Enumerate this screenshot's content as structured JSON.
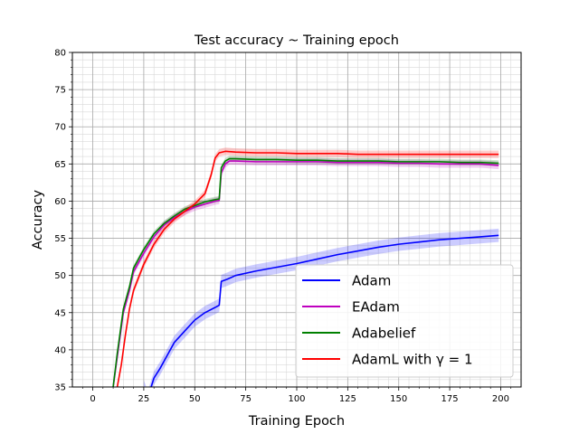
{
  "chart_data": {
    "type": "line",
    "title": "Test accuracy ~ Training epoch",
    "xlabel": "Training Epoch",
    "ylabel": "Accuracy",
    "xlim": [
      -10,
      210
    ],
    "ylim": [
      35,
      80
    ],
    "xticks": [
      0,
      25,
      50,
      75,
      100,
      125,
      150,
      175,
      200
    ],
    "yticks": [
      35,
      40,
      45,
      50,
      55,
      60,
      65,
      70,
      75,
      80
    ],
    "grid": true,
    "minor_grid": true,
    "legend_position": "lower-right",
    "series": [
      {
        "name": "Adam",
        "color": "#0000ff",
        "band": 0.9,
        "points": [
          [
            25,
            35
          ],
          [
            27,
            33.6
          ],
          [
            30,
            36.2
          ],
          [
            33,
            37.5
          ],
          [
            36,
            39
          ],
          [
            40,
            41
          ],
          [
            45,
            42.5
          ],
          [
            50,
            44
          ],
          [
            55,
            45
          ],
          [
            60,
            45.7
          ],
          [
            62,
            46
          ],
          [
            63,
            49.2
          ],
          [
            66,
            49.5
          ],
          [
            70,
            50
          ],
          [
            80,
            50.6
          ],
          [
            90,
            51.1
          ],
          [
            100,
            51.6
          ],
          [
            110,
            52.2
          ],
          [
            120,
            52.8
          ],
          [
            130,
            53.3
          ],
          [
            140,
            53.8
          ],
          [
            150,
            54.2
          ],
          [
            160,
            54.5
          ],
          [
            170,
            54.8
          ],
          [
            180,
            55
          ],
          [
            190,
            55.2
          ],
          [
            199,
            55.4
          ]
        ]
      },
      {
        "name": "EAdam",
        "color": "#bf00bf",
        "band": 0.5,
        "points": [
          [
            10,
            35
          ],
          [
            12,
            39
          ],
          [
            15,
            45
          ],
          [
            18,
            48
          ],
          [
            20,
            50.5
          ],
          [
            25,
            53
          ],
          [
            30,
            55.2
          ],
          [
            35,
            56.8
          ],
          [
            40,
            57.8
          ],
          [
            45,
            58.6
          ],
          [
            50,
            59.2
          ],
          [
            55,
            59.6
          ],
          [
            60,
            60
          ],
          [
            62,
            60.1
          ],
          [
            63,
            63.8
          ],
          [
            65,
            65
          ],
          [
            67,
            65.4
          ],
          [
            70,
            65.4
          ],
          [
            80,
            65.3
          ],
          [
            90,
            65.3
          ],
          [
            100,
            65.3
          ],
          [
            110,
            65.3
          ],
          [
            120,
            65.2
          ],
          [
            130,
            65.2
          ],
          [
            140,
            65.2
          ],
          [
            150,
            65.1
          ],
          [
            160,
            65.1
          ],
          [
            170,
            65
          ],
          [
            180,
            65
          ],
          [
            190,
            65
          ],
          [
            199,
            64.8
          ]
        ]
      },
      {
        "name": "Adabelief",
        "color": "#008000",
        "band": 0.4,
        "points": [
          [
            10,
            35
          ],
          [
            12,
            39.5
          ],
          [
            15,
            45.5
          ],
          [
            18,
            48.5
          ],
          [
            20,
            51
          ],
          [
            25,
            53.5
          ],
          [
            30,
            55.6
          ],
          [
            35,
            57
          ],
          [
            40,
            58
          ],
          [
            45,
            58.9
          ],
          [
            50,
            59.4
          ],
          [
            55,
            59.9
          ],
          [
            60,
            60.2
          ],
          [
            62,
            60.3
          ],
          [
            63,
            64.5
          ],
          [
            65,
            65.4
          ],
          [
            67,
            65.7
          ],
          [
            70,
            65.7
          ],
          [
            80,
            65.6
          ],
          [
            90,
            65.6
          ],
          [
            100,
            65.5
          ],
          [
            110,
            65.5
          ],
          [
            120,
            65.4
          ],
          [
            130,
            65.4
          ],
          [
            140,
            65.4
          ],
          [
            150,
            65.3
          ],
          [
            160,
            65.3
          ],
          [
            170,
            65.3
          ],
          [
            180,
            65.2
          ],
          [
            190,
            65.2
          ],
          [
            199,
            65.1
          ]
        ]
      },
      {
        "name": "AdamL with γ = 1",
        "color": "#ff0000",
        "band": 0.5,
        "points": [
          [
            12,
            35
          ],
          [
            14,
            38
          ],
          [
            16,
            42
          ],
          [
            18,
            45.5
          ],
          [
            20,
            48
          ],
          [
            25,
            51.5
          ],
          [
            30,
            54.2
          ],
          [
            35,
            56.2
          ],
          [
            40,
            57.6
          ],
          [
            45,
            58.6
          ],
          [
            50,
            59.6
          ],
          [
            55,
            61
          ],
          [
            58,
            63.5
          ],
          [
            60,
            65.8
          ],
          [
            62,
            66.5
          ],
          [
            65,
            66.7
          ],
          [
            70,
            66.6
          ],
          [
            80,
            66.5
          ],
          [
            90,
            66.5
          ],
          [
            100,
            66.4
          ],
          [
            110,
            66.4
          ],
          [
            120,
            66.4
          ],
          [
            130,
            66.3
          ],
          [
            140,
            66.3
          ],
          [
            150,
            66.3
          ],
          [
            160,
            66.3
          ],
          [
            170,
            66.3
          ],
          [
            180,
            66.3
          ],
          [
            190,
            66.3
          ],
          [
            199,
            66.3
          ]
        ]
      }
    ]
  }
}
